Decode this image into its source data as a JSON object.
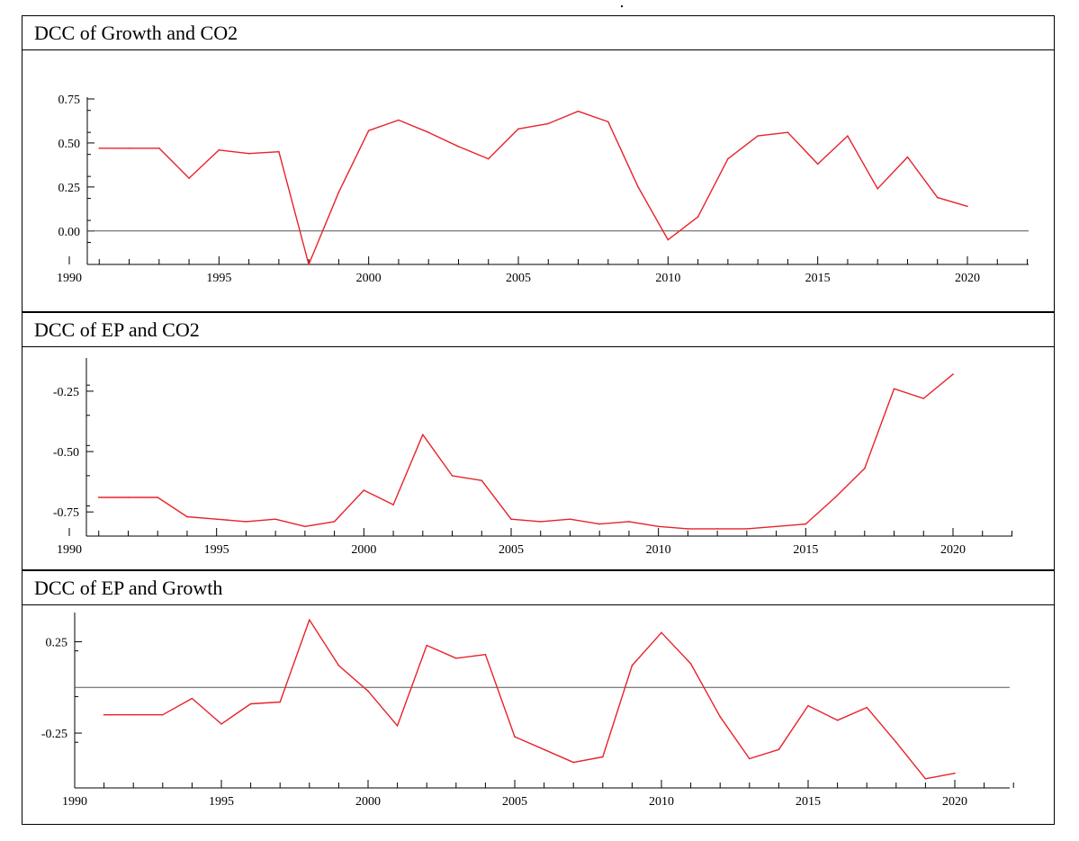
{
  "chart_data": [
    {
      "type": "line",
      "title": "DCC of Growth and CO2",
      "x": [
        1991,
        1992,
        1993,
        1994,
        1995,
        1996,
        1997,
        1998,
        1999,
        2000,
        2001,
        2002,
        2003,
        2004,
        2005,
        2006,
        2007,
        2008,
        2009,
        2010,
        2011,
        2012,
        2013,
        2014,
        2015,
        2016,
        2017,
        2018,
        2019,
        2020
      ],
      "values": [
        0.47,
        0.47,
        0.47,
        0.3,
        0.46,
        0.44,
        0.45,
        -0.19,
        0.22,
        0.57,
        0.63,
        0.56,
        0.48,
        0.41,
        0.58,
        0.61,
        0.68,
        0.62,
        0.25,
        -0.05,
        0.08,
        0.41,
        0.54,
        0.56,
        0.38,
        0.54,
        0.24,
        0.42,
        0.19,
        0.14
      ],
      "xlim": [
        1990,
        2022
      ],
      "ylim": [
        -0.15,
        0.75
      ],
      "yticks": [
        0.75,
        0.5,
        0.25,
        0.0
      ],
      "ytick_labels": [
        "0.75",
        "0.50",
        "0.25",
        "0.00"
      ],
      "xticks": [
        1990,
        1995,
        2000,
        2005,
        2010,
        2015,
        2020
      ],
      "xtick_labels": [
        "1990",
        "1995",
        "2000",
        "2005",
        "2010",
        "2015",
        "2020"
      ],
      "zero_line": true,
      "line_color": "#e8222a",
      "zero_line_color": "#555555"
    },
    {
      "type": "line",
      "title": "DCC of EP and CO2",
      "x": [
        1991,
        1992,
        1993,
        1994,
        1995,
        1996,
        1997,
        1998,
        1999,
        2000,
        2001,
        2002,
        2003,
        2004,
        2005,
        2006,
        2007,
        2008,
        2009,
        2010,
        2011,
        2012,
        2013,
        2014,
        2015,
        2016,
        2017,
        2018,
        2019,
        2020
      ],
      "values": [
        -0.69,
        -0.69,
        -0.69,
        -0.77,
        -0.78,
        -0.79,
        -0.78,
        -0.81,
        -0.79,
        -0.66,
        -0.72,
        -0.43,
        -0.6,
        -0.62,
        -0.78,
        -0.79,
        -0.78,
        -0.8,
        -0.79,
        -0.81,
        -0.82,
        -0.82,
        -0.82,
        -0.81,
        -0.8,
        -0.69,
        -0.57,
        -0.24,
        -0.28,
        -0.18
      ],
      "xlim": [
        1990,
        2022
      ],
      "ylim": [
        -0.85,
        -0.12
      ],
      "yticks": [
        -0.25,
        -0.5,
        -0.75
      ],
      "ytick_labels": [
        "-0.25",
        "-0.50",
        "-0.75"
      ],
      "xticks": [
        1990,
        1995,
        2000,
        2005,
        2010,
        2015,
        2020
      ],
      "xtick_labels": [
        "1990",
        "1995",
        "2000",
        "2005",
        "2010",
        "2015",
        "2020"
      ],
      "zero_line": false,
      "line_color": "#e8222a",
      "zero_line_color": "#555555"
    },
    {
      "type": "line",
      "title": "DCC of EP and Growth",
      "x": [
        1991,
        1992,
        1993,
        1994,
        1995,
        1996,
        1997,
        1998,
        1999,
        2000,
        2001,
        2002,
        2003,
        2004,
        2005,
        2006,
        2007,
        2008,
        2009,
        2010,
        2011,
        2012,
        2013,
        2014,
        2015,
        2016,
        2017,
        2018,
        2019,
        2020
      ],
      "values": [
        -0.15,
        -0.15,
        -0.15,
        -0.06,
        -0.2,
        -0.09,
        -0.08,
        0.37,
        0.12,
        -0.02,
        -0.21,
        0.23,
        0.16,
        0.18,
        -0.27,
        -0.34,
        -0.41,
        -0.38,
        0.12,
        0.3,
        0.13,
        -0.16,
        -0.39,
        -0.34,
        -0.1,
        -0.18,
        -0.11,
        -0.3,
        -0.5,
        -0.47
      ],
      "xlim": [
        1990,
        2022
      ],
      "ylim": [
        -0.55,
        0.4
      ],
      "yticks": [
        0.25,
        -0.25
      ],
      "ytick_labels": [
        "0.25",
        "-0.25"
      ],
      "xticks": [
        1990,
        1995,
        2000,
        2005,
        2010,
        2015,
        2020
      ],
      "xtick_labels": [
        "1990",
        "1995",
        "2000",
        "2005",
        "2010",
        "2015",
        "2020"
      ],
      "zero_line": true,
      "line_color": "#e8222a",
      "zero_line_color": "#555555"
    }
  ]
}
